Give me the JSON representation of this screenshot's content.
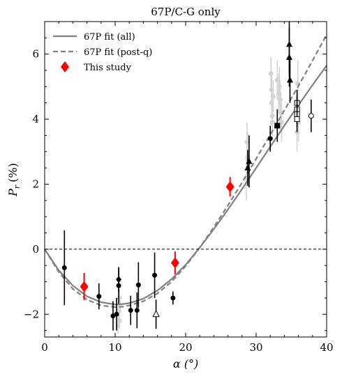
{
  "chart_data": {
    "type": "scatter",
    "title": "67P/C-G only",
    "xlabel": "α (°)",
    "ylabel": "Pr (%)",
    "ylabel_main": "P",
    "ylabel_sub": "r",
    "ylabel_unit": "(%)",
    "xlim": [
      0,
      40
    ],
    "ylim": [
      -2.7,
      7.0
    ],
    "xticks": [
      0,
      10,
      20,
      30,
      40
    ],
    "yticks": [
      -2,
      0,
      2,
      4,
      6
    ],
    "xtick_labels": [
      "0",
      "10",
      "20",
      "30",
      "40"
    ],
    "ytick_labels": [
      "−2",
      "0",
      "2",
      "4",
      "6"
    ],
    "grid": false,
    "legend_position": "top-left",
    "legend": [
      {
        "label": "67P fit (all)",
        "style": "solid-line",
        "color": "#808080"
      },
      {
        "label": "67P fit (post-q)",
        "style": "dashed-line",
        "color": "#808080"
      },
      {
        "label": "This study",
        "style": "diamond",
        "color": "#ff0000"
      }
    ],
    "reference_line": {
      "y": 0,
      "style": "dashed",
      "color": "#000000"
    },
    "fits": [
      {
        "name": "67P fit (all)",
        "style": "solid",
        "color": "#808080",
        "x": [
          0,
          2,
          4,
          6,
          8,
          10,
          11,
          12,
          14,
          16,
          18,
          20,
          22,
          24,
          26,
          28,
          30,
          32,
          34,
          36,
          38,
          40
        ],
        "y": [
          0,
          -0.65,
          -1.12,
          -1.45,
          -1.63,
          -1.7,
          -1.69,
          -1.66,
          -1.52,
          -1.27,
          -0.92,
          -0.48,
          0.05,
          0.62,
          1.22,
          1.85,
          2.5,
          3.15,
          3.8,
          4.43,
          5.05,
          5.65
        ]
      },
      {
        "name": "67P fit (post-q)",
        "style": "dashed",
        "color": "#808080",
        "x": [
          0,
          2,
          4,
          6,
          8,
          10,
          11,
          12,
          14,
          16,
          18,
          20,
          22,
          24,
          26,
          28,
          30,
          32,
          34,
          36,
          38,
          40
        ],
        "y": [
          0,
          -0.7,
          -1.22,
          -1.55,
          -1.73,
          -1.78,
          -1.77,
          -1.73,
          -1.6,
          -1.36,
          -1.0,
          -0.52,
          0.05,
          0.68,
          1.35,
          2.05,
          2.78,
          3.52,
          4.27,
          5.02,
          5.8,
          6.6
        ]
      }
    ],
    "series": [
      {
        "name": "This study",
        "marker": "diamond",
        "color": "#ff0000",
        "points": [
          {
            "x": 5.6,
            "y": -1.15,
            "err": 0.42
          },
          {
            "x": 18.5,
            "y": -0.42,
            "err": 0.35
          },
          {
            "x": 26.3,
            "y": 1.92,
            "err": 0.3
          }
        ]
      },
      {
        "name": "circle",
        "marker": "circle",
        "color": "#000000",
        "points": [
          {
            "x": 2.8,
            "y": -0.57,
            "err": 1.15
          },
          {
            "x": 7.7,
            "y": -1.45,
            "err": 0.4
          },
          {
            "x": 9.7,
            "y": -2.05,
            "err": 0.45
          },
          {
            "x": 10.2,
            "y": -2.0,
            "err": 0.5
          },
          {
            "x": 10.5,
            "y": -1.12,
            "err": 0.55
          },
          {
            "x": 12.2,
            "y": -1.88,
            "err": 0.45
          },
          {
            "x": 13.1,
            "y": -1.88,
            "err": 0.55
          },
          {
            "x": 13.3,
            "y": -1.1,
            "err": 0.7
          },
          {
            "x": 15.6,
            "y": -0.8,
            "err": 0.7
          },
          {
            "x": 18.2,
            "y": -1.5,
            "err": 0.2
          },
          {
            "x": 32.0,
            "y": 3.4,
            "err": 0.4
          }
        ]
      },
      {
        "name": "diamond",
        "marker": "diamond",
        "color": "#000000",
        "points": [
          {
            "x": 10.5,
            "y": -0.93,
            "err": 0.38
          }
        ]
      },
      {
        "name": "triangle",
        "marker": "triangle",
        "color": "#000000",
        "points": [
          {
            "x": 28.8,
            "y": 2.5,
            "err": 0.55
          },
          {
            "x": 29.0,
            "y": 2.7,
            "err": 0.8
          },
          {
            "x": 34.7,
            "y": 6.3,
            "err": 0.9
          },
          {
            "x": 34.7,
            "y": 5.9,
            "err": 0.9
          },
          {
            "x": 34.8,
            "y": 5.2,
            "err": 0.7
          }
        ]
      },
      {
        "name": "open-triangle",
        "marker": "triangle-open",
        "color": "#000000",
        "points": [
          {
            "x": 15.8,
            "y": -2.0,
            "err": 0.45
          }
        ]
      },
      {
        "name": "square",
        "marker": "square",
        "color": "#000000",
        "points": [
          {
            "x": 33.0,
            "y": 3.8,
            "err": 0.5
          }
        ]
      },
      {
        "name": "open-square",
        "marker": "square-open",
        "color": "#000000",
        "points": [
          {
            "x": 35.8,
            "y": 4.5,
            "err": 0.4
          },
          {
            "x": 35.8,
            "y": 4.3,
            "err": 0.4
          },
          {
            "x": 35.8,
            "y": 4.15,
            "err": 0.4
          },
          {
            "x": 35.8,
            "y": 4.0,
            "err": 0.4
          }
        ]
      },
      {
        "name": "open-circle",
        "marker": "circle-open",
        "color": "#000000",
        "points": [
          {
            "x": 37.8,
            "y": 4.1,
            "err": 0.5
          }
        ]
      },
      {
        "name": "faint",
        "marker": "circle",
        "color": "#d3d3d3",
        "points": [
          {
            "x": 10.4,
            "y": -2.35,
            "err": 0.25
          },
          {
            "x": 10.6,
            "y": -2.2,
            "err": 0.25
          },
          {
            "x": 10.5,
            "y": -1.9,
            "err": 0.25
          },
          {
            "x": 10.7,
            "y": -1.7,
            "err": 0.25
          },
          {
            "x": 10.6,
            "y": -1.5,
            "err": 0.25
          },
          {
            "x": 28.6,
            "y": 2.2,
            "err": 0.7
          },
          {
            "x": 28.8,
            "y": 2.8,
            "err": 0.8
          },
          {
            "x": 28.7,
            "y": 3.3,
            "err": 0.6
          },
          {
            "x": 32.1,
            "y": 5.4,
            "err": 0.5
          },
          {
            "x": 32.2,
            "y": 4.9,
            "err": 0.5
          },
          {
            "x": 32.2,
            "y": 4.5,
            "err": 0.5
          },
          {
            "x": 32.3,
            "y": 4.1,
            "err": 0.5
          },
          {
            "x": 32.3,
            "y": 3.9,
            "err": 0.5
          },
          {
            "x": 32.4,
            "y": 4.7,
            "err": 0.5
          },
          {
            "x": 33.0,
            "y": 5.2,
            "err": 0.6
          },
          {
            "x": 33.2,
            "y": 4.8,
            "err": 0.6
          },
          {
            "x": 33.3,
            "y": 5.0,
            "err": 0.6
          },
          {
            "x": 33.4,
            "y": 4.6,
            "err": 0.6
          },
          {
            "x": 33.5,
            "y": 4.2,
            "err": 0.6
          },
          {
            "x": 33.6,
            "y": 3.9,
            "err": 0.6
          },
          {
            "x": 35.8,
            "y": 3.6,
            "err": 0.6
          },
          {
            "x": 36.0,
            "y": 3.9,
            "err": 0.6
          },
          {
            "x": 35.9,
            "y": 5.1,
            "err": 0.7
          }
        ]
      }
    ]
  }
}
